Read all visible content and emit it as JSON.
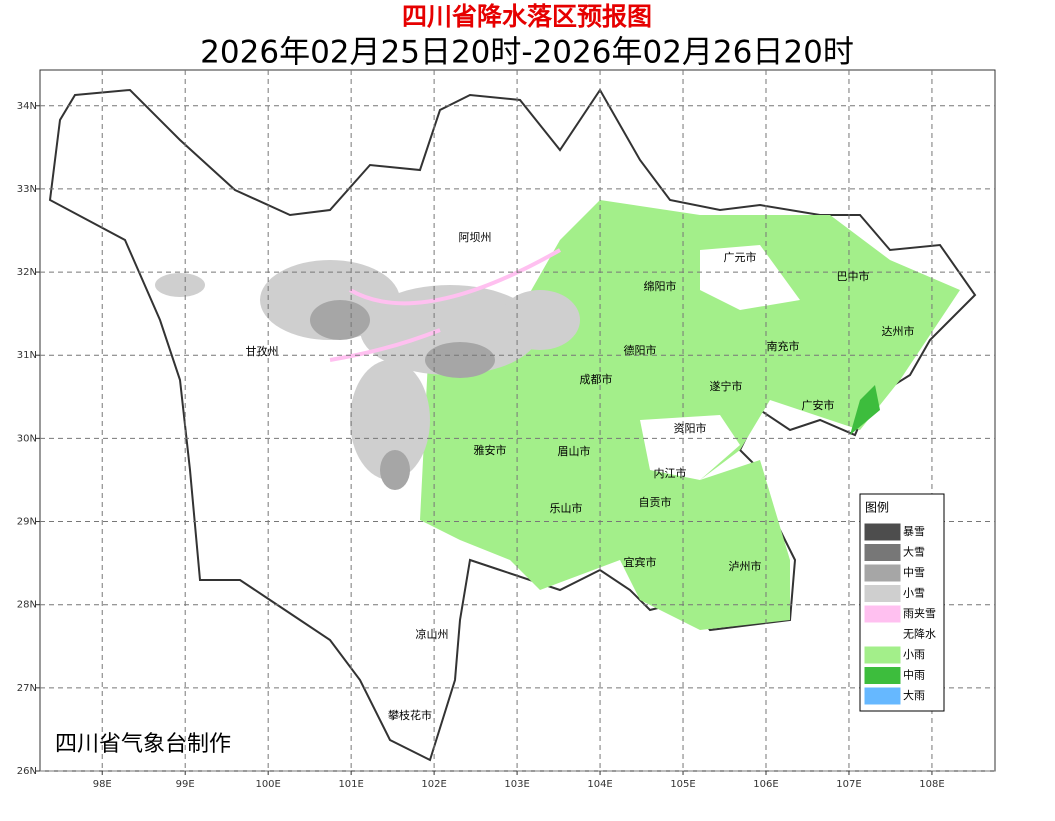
{
  "header": {
    "title": "四川省降水落区预报图",
    "subtitle": "2026年02月25日20时-2026年02月26日20时"
  },
  "map": {
    "lonlim": [
      97.25,
      108.76
    ],
    "latlim": [
      26,
      34.43
    ],
    "lonticks": [
      {
        "value": 98,
        "label": "98E"
      },
      {
        "value": 99,
        "label": "99E"
      },
      {
        "value": 100,
        "label": "100E"
      },
      {
        "value": 101,
        "label": "101E"
      },
      {
        "value": 102,
        "label": "102E"
      },
      {
        "value": 103,
        "label": "103E"
      },
      {
        "value": 104,
        "label": "104E"
      },
      {
        "value": 105,
        "label": "105E"
      },
      {
        "value": 106,
        "label": "106E"
      },
      {
        "value": 107,
        "label": "107E"
      },
      {
        "value": 108,
        "label": "108E"
      }
    ],
    "latticks": [
      {
        "value": 26,
        "label": "26N"
      },
      {
        "value": 27,
        "label": "27N"
      },
      {
        "value": 28,
        "label": "28N"
      },
      {
        "value": 29,
        "label": "29N"
      },
      {
        "value": 30,
        "label": "30N"
      },
      {
        "value": 31,
        "label": "31N"
      },
      {
        "value": 32,
        "label": "32N"
      },
      {
        "value": 33,
        "label": "33N"
      },
      {
        "value": 34,
        "label": "34N"
      }
    ],
    "grid": true,
    "cities": [
      "阿坝州",
      "广元市",
      "巴中市",
      "绵阳市",
      "达州市",
      "甘孜州",
      "德阳市",
      "南充市",
      "成都市",
      "遂宁市",
      "广安市",
      "资阳市",
      "雅安市",
      "眉山市",
      "内江市",
      "自贡市",
      "乐山市",
      "宜宾市",
      "泸州市",
      "凉山州",
      "攀枝花市"
    ],
    "credit": "四川省气象台制作"
  },
  "legend": {
    "title": "图例",
    "items": [
      {
        "name": "暴雪",
        "color": "#4d4d4d"
      },
      {
        "name": "大雪",
        "color": "#777777"
      },
      {
        "name": "中雪",
        "color": "#a6a6a6"
      },
      {
        "name": "小雪",
        "color": "#cfcfcf"
      },
      {
        "name": "雨夹雪",
        "color": "#ffc0f0"
      },
      {
        "name": "无降水",
        "color": "#ffffff"
      },
      {
        "name": "小雨",
        "color": "#a3ef8a"
      },
      {
        "name": "中雨",
        "color": "#3dbd3d"
      },
      {
        "name": "大雨",
        "color": "#66b8ff"
      }
    ]
  }
}
